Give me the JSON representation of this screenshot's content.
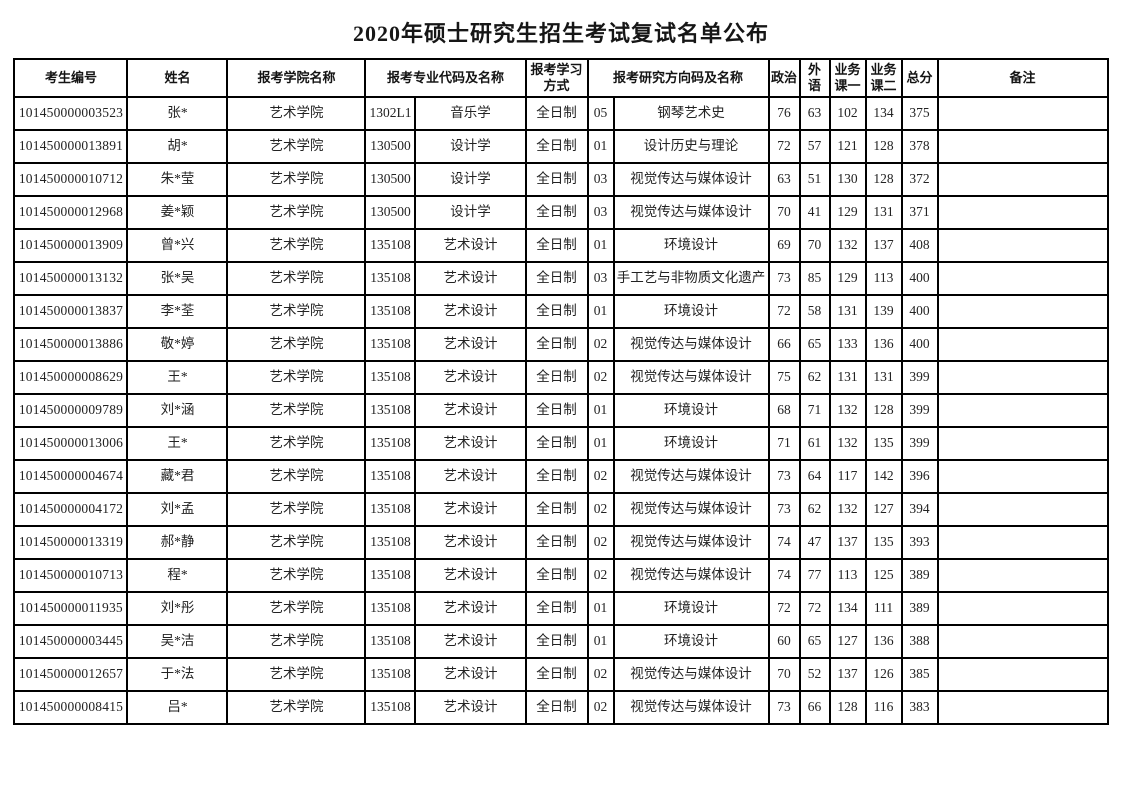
{
  "title": "2020年硕士研究生招生考试复试名单公布",
  "table": {
    "headers": {
      "id": "考生编号",
      "name": "姓名",
      "college": "报考学院名称",
      "major": "报考专业代码及名称",
      "mode": "报考学习\n方式",
      "direction": "报考研究方向码及名称",
      "politics": "政治",
      "foreign": "外\n语",
      "course1": "业务\n课一",
      "course2": "业务\n课二",
      "total": "总分",
      "remark": "备注"
    },
    "row_keys": [
      "id",
      "name",
      "college",
      "major_code",
      "major_name",
      "mode",
      "dir_code",
      "dir_name",
      "politics",
      "foreign",
      "course1",
      "course2",
      "total",
      "remark"
    ],
    "rows": [
      {
        "id": "101450000003523",
        "name": "张*",
        "college": "艺术学院",
        "major_code": "1302L1",
        "major_name": "音乐学",
        "mode": "全日制",
        "dir_code": "05",
        "dir_name": "钢琴艺术史",
        "politics": "76",
        "foreign": "63",
        "course1": "102",
        "course2": "134",
        "total": "375",
        "remark": ""
      },
      {
        "id": "101450000013891",
        "name": "胡*",
        "college": "艺术学院",
        "major_code": "130500",
        "major_name": "设计学",
        "mode": "全日制",
        "dir_code": "01",
        "dir_name": "设计历史与理论",
        "politics": "72",
        "foreign": "57",
        "course1": "121",
        "course2": "128",
        "total": "378",
        "remark": ""
      },
      {
        "id": "101450000010712",
        "name": "朱*莹",
        "college": "艺术学院",
        "major_code": "130500",
        "major_name": "设计学",
        "mode": "全日制",
        "dir_code": "03",
        "dir_name": "视觉传达与媒体设计",
        "politics": "63",
        "foreign": "51",
        "course1": "130",
        "course2": "128",
        "total": "372",
        "remark": ""
      },
      {
        "id": "101450000012968",
        "name": "姜*颖",
        "college": "艺术学院",
        "major_code": "130500",
        "major_name": "设计学",
        "mode": "全日制",
        "dir_code": "03",
        "dir_name": "视觉传达与媒体设计",
        "politics": "70",
        "foreign": "41",
        "course1": "129",
        "course2": "131",
        "total": "371",
        "remark": ""
      },
      {
        "id": "101450000013909",
        "name": "曾*兴",
        "college": "艺术学院",
        "major_code": "135108",
        "major_name": "艺术设计",
        "mode": "全日制",
        "dir_code": "01",
        "dir_name": "环境设计",
        "politics": "69",
        "foreign": "70",
        "course1": "132",
        "course2": "137",
        "total": "408",
        "remark": ""
      },
      {
        "id": "101450000013132",
        "name": "张*吴",
        "college": "艺术学院",
        "major_code": "135108",
        "major_name": "艺术设计",
        "mode": "全日制",
        "dir_code": "03",
        "dir_name": "手工艺与非物质文化遗产",
        "politics": "73",
        "foreign": "85",
        "course1": "129",
        "course2": "113",
        "total": "400",
        "remark": ""
      },
      {
        "id": "101450000013837",
        "name": "李*荃",
        "college": "艺术学院",
        "major_code": "135108",
        "major_name": "艺术设计",
        "mode": "全日制",
        "dir_code": "01",
        "dir_name": "环境设计",
        "politics": "72",
        "foreign": "58",
        "course1": "131",
        "course2": "139",
        "total": "400",
        "remark": ""
      },
      {
        "id": "101450000013886",
        "name": "敬*婷",
        "college": "艺术学院",
        "major_code": "135108",
        "major_name": "艺术设计",
        "mode": "全日制",
        "dir_code": "02",
        "dir_name": "视觉传达与媒体设计",
        "politics": "66",
        "foreign": "65",
        "course1": "133",
        "course2": "136",
        "total": "400",
        "remark": ""
      },
      {
        "id": "101450000008629",
        "name": "王*",
        "college": "艺术学院",
        "major_code": "135108",
        "major_name": "艺术设计",
        "mode": "全日制",
        "dir_code": "02",
        "dir_name": "视觉传达与媒体设计",
        "politics": "75",
        "foreign": "62",
        "course1": "131",
        "course2": "131",
        "total": "399",
        "remark": ""
      },
      {
        "id": "101450000009789",
        "name": "刘*涵",
        "college": "艺术学院",
        "major_code": "135108",
        "major_name": "艺术设计",
        "mode": "全日制",
        "dir_code": "01",
        "dir_name": "环境设计",
        "politics": "68",
        "foreign": "71",
        "course1": "132",
        "course2": "128",
        "total": "399",
        "remark": ""
      },
      {
        "id": "101450000013006",
        "name": "王*",
        "college": "艺术学院",
        "major_code": "135108",
        "major_name": "艺术设计",
        "mode": "全日制",
        "dir_code": "01",
        "dir_name": "环境设计",
        "politics": "71",
        "foreign": "61",
        "course1": "132",
        "course2": "135",
        "total": "399",
        "remark": ""
      },
      {
        "id": "101450000004674",
        "name": "藏*君",
        "college": "艺术学院",
        "major_code": "135108",
        "major_name": "艺术设计",
        "mode": "全日制",
        "dir_code": "02",
        "dir_name": "视觉传达与媒体设计",
        "politics": "73",
        "foreign": "64",
        "course1": "117",
        "course2": "142",
        "total": "396",
        "remark": ""
      },
      {
        "id": "101450000004172",
        "name": "刘*孟",
        "college": "艺术学院",
        "major_code": "135108",
        "major_name": "艺术设计",
        "mode": "全日制",
        "dir_code": "02",
        "dir_name": "视觉传达与媒体设计",
        "politics": "73",
        "foreign": "62",
        "course1": "132",
        "course2": "127",
        "total": "394",
        "remark": ""
      },
      {
        "id": "101450000013319",
        "name": "郝*静",
        "college": "艺术学院",
        "major_code": "135108",
        "major_name": "艺术设计",
        "mode": "全日制",
        "dir_code": "02",
        "dir_name": "视觉传达与媒体设计",
        "politics": "74",
        "foreign": "47",
        "course1": "137",
        "course2": "135",
        "total": "393",
        "remark": ""
      },
      {
        "id": "101450000010713",
        "name": "程*",
        "college": "艺术学院",
        "major_code": "135108",
        "major_name": "艺术设计",
        "mode": "全日制",
        "dir_code": "02",
        "dir_name": "视觉传达与媒体设计",
        "politics": "74",
        "foreign": "77",
        "course1": "113",
        "course2": "125",
        "total": "389",
        "remark": ""
      },
      {
        "id": "101450000011935",
        "name": "刘*彤",
        "college": "艺术学院",
        "major_code": "135108",
        "major_name": "艺术设计",
        "mode": "全日制",
        "dir_code": "01",
        "dir_name": "环境设计",
        "politics": "72",
        "foreign": "72",
        "course1": "134",
        "course2": "111",
        "total": "389",
        "remark": ""
      },
      {
        "id": "101450000003445",
        "name": "吴*洁",
        "college": "艺术学院",
        "major_code": "135108",
        "major_name": "艺术设计",
        "mode": "全日制",
        "dir_code": "01",
        "dir_name": "环境设计",
        "politics": "60",
        "foreign": "65",
        "course1": "127",
        "course2": "136",
        "total": "388",
        "remark": ""
      },
      {
        "id": "101450000012657",
        "name": "于*法",
        "college": "艺术学院",
        "major_code": "135108",
        "major_name": "艺术设计",
        "mode": "全日制",
        "dir_code": "02",
        "dir_name": "视觉传达与媒体设计",
        "politics": "70",
        "foreign": "52",
        "course1": "137",
        "course2": "126",
        "total": "385",
        "remark": ""
      },
      {
        "id": "101450000008415",
        "name": "吕*",
        "college": "艺术学院",
        "major_code": "135108",
        "major_name": "艺术设计",
        "mode": "全日制",
        "dir_code": "02",
        "dir_name": "视觉传达与媒体设计",
        "politics": "73",
        "foreign": "66",
        "course1": "128",
        "course2": "116",
        "total": "383",
        "remark": ""
      }
    ]
  }
}
